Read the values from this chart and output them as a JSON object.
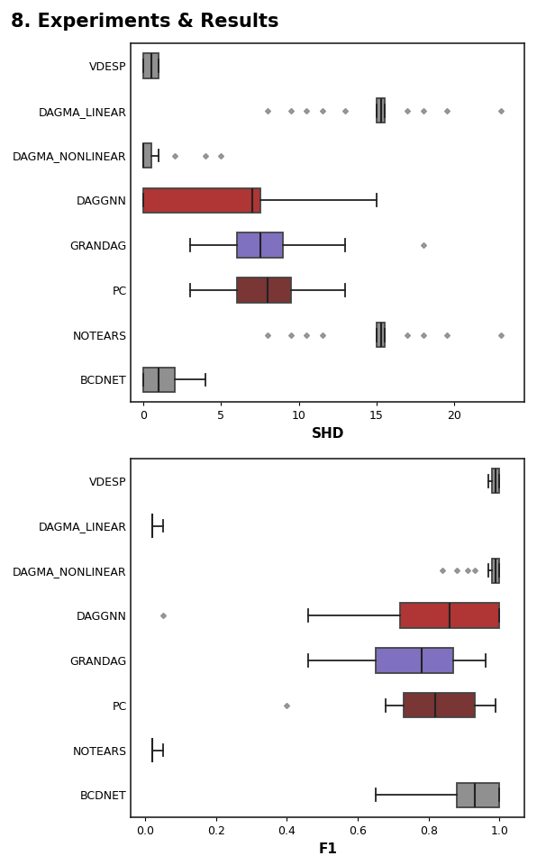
{
  "title": "8. Experiments & Results",
  "methods": [
    "VDESP",
    "DAGMA_LINEAR",
    "DAGMA_NONLINEAR",
    "DAGGNN",
    "GRANDAG",
    "PC",
    "NOTEARS",
    "BCDNET"
  ],
  "colors": {
    "VDESP": "#909090",
    "DAGMA_LINEAR": "#909090",
    "DAGMA_NONLINEAR": "#909090",
    "DAGGNN": "#b03535",
    "GRANDAG": "#8070c0",
    "PC": "#7a3535",
    "NOTEARS": "#909090",
    "BCDNET": "#909090"
  },
  "shd": {
    "VDESP": {
      "whislo": 0.0,
      "q1": 0.0,
      "med": 0.5,
      "q3": 1.0,
      "whishi": 1.0,
      "fliers": []
    },
    "DAGMA_LINEAR": {
      "whislo": 15.0,
      "q1": 15.0,
      "med": 15.3,
      "q3": 15.5,
      "whishi": 15.5,
      "fliers": [
        8.0,
        9.5,
        10.5,
        11.5,
        13.0,
        17.0,
        18.0,
        19.5,
        23.0
      ]
    },
    "DAGMA_NONLINEAR": {
      "whislo": 0.0,
      "q1": 0.0,
      "med": 0.0,
      "q3": 0.5,
      "whishi": 1.0,
      "fliers": [
        2.0,
        4.0,
        5.0
      ]
    },
    "DAGGNN": {
      "whislo": 0.0,
      "q1": 0.0,
      "med": 7.0,
      "q3": 7.5,
      "whishi": 15.0,
      "fliers": []
    },
    "GRANDAG": {
      "whislo": 3.0,
      "q1": 6.0,
      "med": 7.5,
      "q3": 9.0,
      "whishi": 13.0,
      "fliers": [
        18.0
      ]
    },
    "PC": {
      "whislo": 3.0,
      "q1": 6.0,
      "med": 8.0,
      "q3": 9.5,
      "whishi": 13.0,
      "fliers": []
    },
    "NOTEARS": {
      "whislo": 15.0,
      "q1": 15.0,
      "med": 15.3,
      "q3": 15.5,
      "whishi": 15.5,
      "fliers": [
        8.0,
        9.5,
        10.5,
        11.5,
        17.0,
        18.0,
        19.5,
        23.0
      ]
    },
    "BCDNET": {
      "whislo": 0.0,
      "q1": 0.0,
      "med": 1.0,
      "q3": 2.0,
      "whishi": 4.0,
      "fliers": []
    }
  },
  "f1": {
    "VDESP": {
      "whislo": 0.97,
      "q1": 0.98,
      "med": 0.99,
      "q3": 1.0,
      "whishi": 1.0,
      "fliers": []
    },
    "DAGMA_LINEAR": {
      "whislo": 0.02,
      "q1": 0.02,
      "med": 0.02,
      "q3": 0.02,
      "whishi": 0.05,
      "fliers": []
    },
    "DAGMA_NONLINEAR": {
      "whislo": 0.97,
      "q1": 0.98,
      "med": 0.99,
      "q3": 1.0,
      "whishi": 1.0,
      "fliers": [
        0.84,
        0.88,
        0.91,
        0.93
      ]
    },
    "DAGGNN": {
      "whislo": 0.46,
      "q1": 0.72,
      "med": 0.86,
      "q3": 1.0,
      "whishi": 1.0,
      "fliers": [
        0.05
      ]
    },
    "GRANDAG": {
      "whislo": 0.46,
      "q1": 0.65,
      "med": 0.78,
      "q3": 0.87,
      "whishi": 0.96,
      "fliers": []
    },
    "PC": {
      "whislo": 0.68,
      "q1": 0.73,
      "med": 0.82,
      "q3": 0.93,
      "whishi": 0.99,
      "fliers": [
        0.4
      ]
    },
    "NOTEARS": {
      "whislo": 0.02,
      "q1": 0.02,
      "med": 0.02,
      "q3": 0.02,
      "whishi": 0.05,
      "fliers": []
    },
    "BCDNET": {
      "whislo": 0.65,
      "q1": 0.88,
      "med": 0.93,
      "q3": 1.0,
      "whishi": 1.0,
      "fliers": []
    }
  },
  "shd_xlabel": "SHD",
  "f1_xlabel": "F1",
  "background_color": "#ffffff"
}
